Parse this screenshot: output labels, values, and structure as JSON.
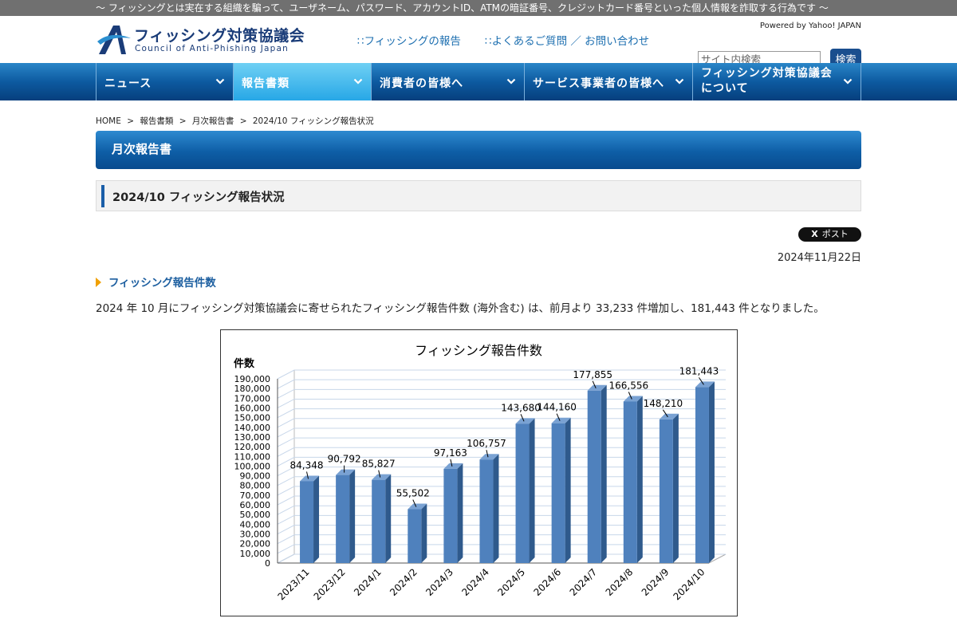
{
  "topbar": {
    "text": "～ フィッシングとは実在する組織を騙って、ユーザネーム、パスワード、アカウントID、ATMの暗証番号、クレジットカード番号といった個人情報を詐取する行為です ～"
  },
  "logo": {
    "jp": "フィッシング対策協議会",
    "en": "Council of Anti-Phishing Japan"
  },
  "header": {
    "link_report": "∷フィッシングの報告",
    "link_faq": "∷よくあるご質問 ／ お問い合わせ",
    "powered": "Powered by Yahoo! JAPAN",
    "search_placeholder": "サイト内検索",
    "search_button": "検索"
  },
  "nav": {
    "items": [
      {
        "label": "ニュース"
      },
      {
        "label": "報告書類"
      },
      {
        "label": "消費者の皆様へ"
      },
      {
        "label": "サービス事業者の皆様へ"
      },
      {
        "label_line1": "フィッシング対策協議会",
        "label_line2": "について"
      }
    ]
  },
  "breadcrumb": {
    "home": "HOME",
    "reports": "報告書類",
    "monthly": "月次報告書",
    "current": "2024/10 フィッシング報告状況",
    "sep": ">"
  },
  "section": {
    "title": "月次報告書"
  },
  "page": {
    "title": "2024/10 フィッシング報告状況",
    "post_label": "ポスト",
    "post_x": "X",
    "date": "2024年11月22日",
    "subheading": "フィッシング報告件数",
    "body": "2024 年 10 月にフィッシング対策協議会に寄せられたフィッシング報告件数 (海外含む) は、前月より 33,233 件増加し、181,443 件となりました。"
  },
  "chart_data": {
    "type": "bar",
    "title": "フィッシング報告件数",
    "ylabel": "件数",
    "xlabel": "",
    "categories": [
      "2023/11",
      "2023/12",
      "2024/1",
      "2024/2",
      "2024/3",
      "2024/4",
      "2024/5",
      "2024/6",
      "2024/7",
      "2024/8",
      "2024/9",
      "2024/10"
    ],
    "values": [
      84348,
      90792,
      85827,
      55502,
      97163,
      106757,
      143680,
      144160,
      177855,
      166556,
      148210,
      181443
    ],
    "value_labels": [
      "84,348",
      "90,792",
      "85,827",
      "55,502",
      "97,163",
      "106,757",
      "143,680",
      "144,160",
      "177,855",
      "166,556",
      "148,210",
      "181,443"
    ],
    "ylim": [
      0,
      190000
    ],
    "ytick_step": 10000,
    "grid": true,
    "bar_color": "#4f81bd"
  }
}
